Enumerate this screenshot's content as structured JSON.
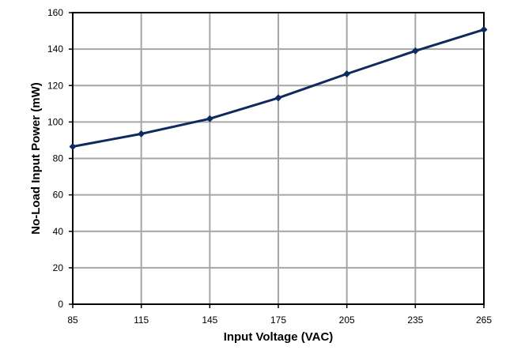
{
  "chart_data": {
    "type": "line",
    "title": "",
    "xlabel": "Input Voltage (VAC)",
    "ylabel": "No-Load Input Power (mW)",
    "xlim": [
      85,
      265
    ],
    "ylim": [
      0,
      160
    ],
    "x_ticks": [
      "85",
      "115",
      "145",
      "175",
      "205",
      "235",
      "265"
    ],
    "y_ticks": [
      "0",
      "20",
      "40",
      "60",
      "80",
      "100",
      "120",
      "140",
      "160"
    ],
    "grid": true,
    "legend": "none",
    "series": [
      {
        "color": "#0f2a5e",
        "marker": "diamond",
        "x": [
          85,
          115,
          145,
          175,
          205,
          235,
          265
        ],
        "y": [
          86.5,
          93.5,
          101.8,
          113.2,
          126.4,
          139.0,
          150.7
        ]
      }
    ]
  }
}
